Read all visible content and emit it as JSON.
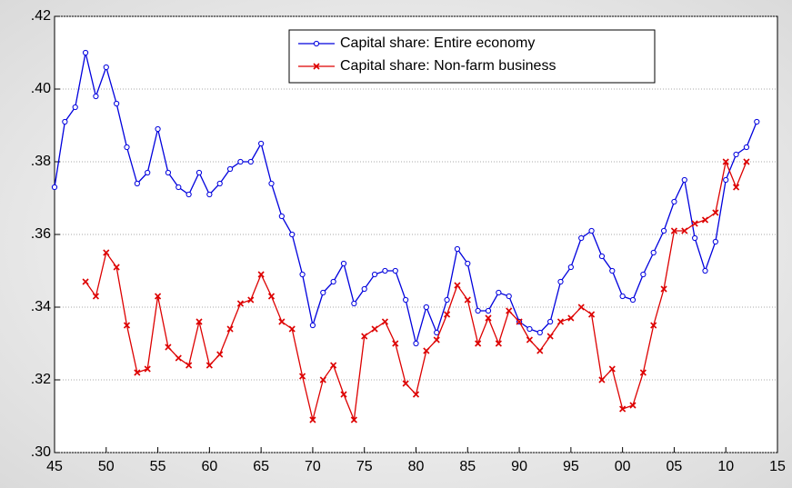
{
  "chart_data": {
    "type": "line",
    "x": [
      1945,
      1946,
      1947,
      1948,
      1949,
      1950,
      1951,
      1952,
      1953,
      1954,
      1955,
      1956,
      1957,
      1958,
      1959,
      1960,
      1961,
      1962,
      1963,
      1964,
      1965,
      1966,
      1967,
      1968,
      1969,
      1970,
      1971,
      1972,
      1973,
      1974,
      1975,
      1976,
      1977,
      1978,
      1979,
      1980,
      1981,
      1982,
      1983,
      1984,
      1985,
      1986,
      1987,
      1988,
      1989,
      1990,
      1991,
      1992,
      1993,
      1994,
      1995,
      1996,
      1997,
      1998,
      1999,
      2000,
      2001,
      2002,
      2003,
      2004,
      2005,
      2006,
      2007,
      2008,
      2009,
      2010,
      2011,
      2012,
      2013
    ],
    "series": [
      {
        "name": "Capital share: Entire economy",
        "color": "#0000dd",
        "marker": "circle",
        "values": [
          0.373,
          0.391,
          0.395,
          0.41,
          0.398,
          0.406,
          0.396,
          0.384,
          0.374,
          0.377,
          0.389,
          0.377,
          0.373,
          0.371,
          0.377,
          0.371,
          0.374,
          0.378,
          0.38,
          0.38,
          0.385,
          0.374,
          0.365,
          0.36,
          0.349,
          0.335,
          0.344,
          0.347,
          0.352,
          0.341,
          0.345,
          0.349,
          0.35,
          0.35,
          0.342,
          0.33,
          0.34,
          0.333,
          0.342,
          0.356,
          0.352,
          0.339,
          0.339,
          0.344,
          0.343,
          0.336,
          0.334,
          0.333,
          0.336,
          0.347,
          0.351,
          0.359,
          0.361,
          0.354,
          0.35,
          0.343,
          0.342,
          0.349,
          0.355,
          0.361,
          0.369,
          0.375,
          0.359,
          0.35,
          0.358,
          0.375,
          0.382,
          0.384,
          0.391
        ]
      },
      {
        "name": "Capital share: Non-farm business",
        "color": "#dd0000",
        "marker": "x",
        "values": [
          null,
          null,
          null,
          0.347,
          0.343,
          0.355,
          0.351,
          0.335,
          0.322,
          0.323,
          0.343,
          0.329,
          0.326,
          0.324,
          0.336,
          0.324,
          0.327,
          0.334,
          0.341,
          0.342,
          0.349,
          0.343,
          0.336,
          0.334,
          0.321,
          0.309,
          0.32,
          0.324,
          0.316,
          0.309,
          0.332,
          0.334,
          0.336,
          0.33,
          0.319,
          0.316,
          0.328,
          0.331,
          0.338,
          0.346,
          0.342,
          0.33,
          0.337,
          0.33,
          0.339,
          0.336,
          0.331,
          0.328,
          0.332,
          0.336,
          0.337,
          0.34,
          0.338,
          0.32,
          0.323,
          0.312,
          0.313,
          0.322,
          0.335,
          0.345,
          0.361,
          0.361,
          0.363,
          0.364,
          0.366,
          0.38,
          0.373,
          0.38,
          null
        ]
      }
    ],
    "xlim": [
      1945,
      2015
    ],
    "xticks": [
      {
        "value": 1945,
        "label": "45"
      },
      {
        "value": 1950,
        "label": "50"
      },
      {
        "value": 1955,
        "label": "55"
      },
      {
        "value": 1960,
        "label": "60"
      },
      {
        "value": 1965,
        "label": "65"
      },
      {
        "value": 1970,
        "label": "70"
      },
      {
        "value": 1975,
        "label": "75"
      },
      {
        "value": 1980,
        "label": "80"
      },
      {
        "value": 1985,
        "label": "85"
      },
      {
        "value": 1990,
        "label": "90"
      },
      {
        "value": 1995,
        "label": "95"
      },
      {
        "value": 2000,
        "label": "00"
      },
      {
        "value": 2005,
        "label": "05"
      },
      {
        "value": 2010,
        "label": "10"
      },
      {
        "value": 2015,
        "label": "15"
      }
    ],
    "ylim": [
      0.3,
      0.42
    ],
    "yticks": [
      {
        "value": 0.3,
        "label": ".30"
      },
      {
        "value": 0.32,
        "label": ".32"
      },
      {
        "value": 0.34,
        "label": ".34"
      },
      {
        "value": 0.36,
        "label": ".36"
      },
      {
        "value": 0.38,
        "label": ".38"
      },
      {
        "value": 0.4,
        "label": ".40"
      },
      {
        "value": 0.42,
        "label": ".42"
      }
    ],
    "grid": true,
    "legend": "top"
  }
}
